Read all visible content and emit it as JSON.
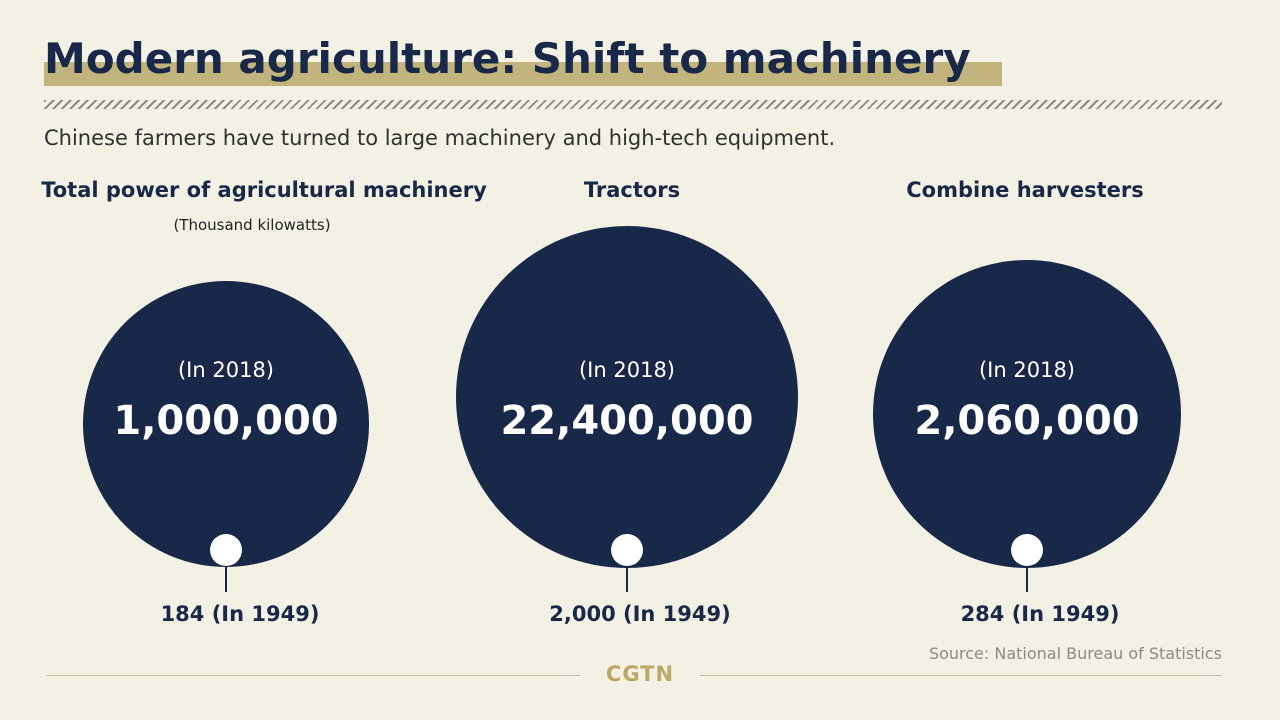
{
  "title": "Modern agriculture: Shift to machinery",
  "subtitle": "Chinese farmers have turned to large machinery and high-tech equipment.",
  "source": "Source: National Bureau of Statistics",
  "logo": "CGTN",
  "colors": {
    "background": "#f3f0e4",
    "navy": "#172848",
    "gold": "#c3b37c",
    "marker": "#ffffff"
  },
  "chart_data": [
    {
      "type": "bubble",
      "title": "Total power of agricultural machinery",
      "unit": "(Thousand kilowatts)",
      "value_2018": 1000000,
      "value_2018_label": "1,000,000",
      "year_2018_label": "(In 2018)",
      "value_1949": 184,
      "value_1949_label": "184 (In 1949)"
    },
    {
      "type": "bubble",
      "title": "Tractors",
      "unit": "",
      "value_2018": 22400000,
      "value_2018_label": "22,400,000",
      "year_2018_label": "(In 2018)",
      "value_1949": 2000,
      "value_1949_label": "2,000  (In 1949)"
    },
    {
      "type": "bubble",
      "title": "Combine harvesters",
      "unit": "",
      "value_2018": 2060000,
      "value_2018_label": "2,060,000",
      "year_2018_label": "(In 2018)",
      "value_1949": 284,
      "value_1949_label": "284 (In 1949)"
    }
  ]
}
